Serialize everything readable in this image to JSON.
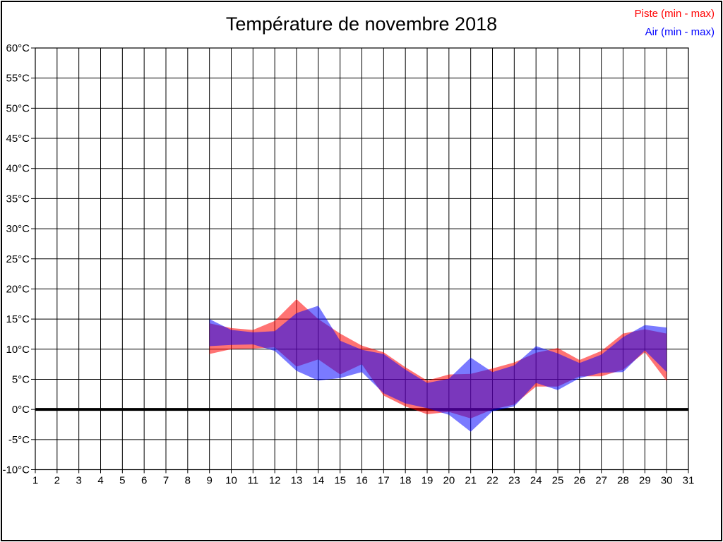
{
  "title": "Température de novembre 2018",
  "legend": {
    "piste": {
      "label": "Piste (min - max)",
      "color": "#ff0000"
    },
    "air": {
      "label": "Air (min - max)",
      "color": "#0000ff"
    }
  },
  "chart_data": {
    "type": "area",
    "subtype": "min-max-band",
    "title": "Température de novembre 2018",
    "grid": true,
    "legend_position": "top-right",
    "xlim": [
      1,
      31
    ],
    "ylim": [
      -10,
      60
    ],
    "ytick_step": 5,
    "zero_line_value": 0,
    "xtick_labels": [
      "1",
      "2",
      "3",
      "4",
      "5",
      "6",
      "7",
      "8",
      "9",
      "10",
      "11",
      "12",
      "13",
      "14",
      "15",
      "16",
      "17",
      "18",
      "19",
      "20",
      "21",
      "22",
      "23",
      "24",
      "25",
      "26",
      "27",
      "28",
      "29",
      "30",
      "31"
    ],
    "ytick_labels": [
      "-10°C",
      "-5°C",
      "0°C",
      "5°C",
      "10°C",
      "15°C",
      "20°C",
      "25°C",
      "30°C",
      "35°C",
      "40°C",
      "45°C",
      "50°C",
      "55°C",
      "60°C"
    ],
    "x_days": [
      9,
      10,
      11,
      12,
      13,
      14,
      15,
      16,
      17,
      18,
      19,
      20,
      21,
      22,
      23,
      24,
      25,
      26,
      27,
      28,
      29,
      30
    ],
    "series": [
      {
        "name": "Piste (min - max)",
        "color": "#ff0000",
        "fill_opacity": 0.55,
        "min": [
          9.2,
          10.0,
          10.1,
          10.3,
          7.1,
          8.3,
          5.8,
          7.5,
          2.3,
          0.5,
          -0.8,
          -0.4,
          -1.5,
          0.0,
          0.8,
          3.8,
          3.8,
          5.5,
          5.5,
          6.6,
          9.5,
          4.7
        ],
        "max": [
          14.3,
          13.5,
          13.2,
          14.7,
          18.3,
          15.0,
          12.6,
          10.6,
          9.5,
          7.0,
          4.8,
          5.8,
          5.9,
          6.8,
          7.8,
          9.4,
          10.2,
          8.2,
          9.7,
          12.6,
          13.3,
          12.6
        ]
      },
      {
        "name": "Air (min - max)",
        "color": "#0000ff",
        "fill_opacity": 0.52,
        "min": [
          10.5,
          10.7,
          10.8,
          9.7,
          6.4,
          4.8,
          5.2,
          6.2,
          2.7,
          1.0,
          0.2,
          -0.9,
          -3.7,
          -0.3,
          0.5,
          4.4,
          3.2,
          5.2,
          6.1,
          6.2,
          9.8,
          6.2
        ],
        "max": [
          15.0,
          13.2,
          12.8,
          13.0,
          16.0,
          17.2,
          11.4,
          9.9,
          9.2,
          6.6,
          4.4,
          5.1,
          8.6,
          6.2,
          7.3,
          10.5,
          9.3,
          7.7,
          9.1,
          12.0,
          14.0,
          13.6
        ]
      }
    ]
  }
}
